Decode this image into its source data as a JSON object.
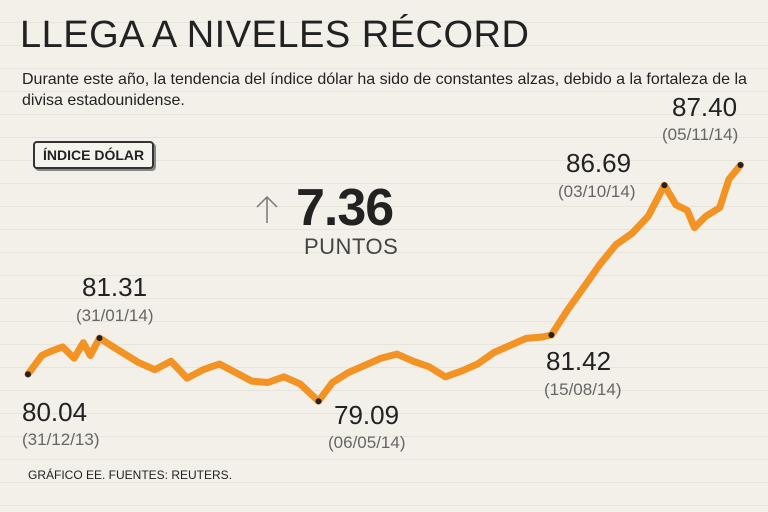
{
  "title": "LLEGA A NIVELES RÉCORD",
  "subtitle": "Durante este año, la tendencia del índice dólar ha sido de constantes alzas, debido a la fortaleza de la divisa estadounidense.",
  "legend_label": "ÍNDICE DÓLAR",
  "change": {
    "value": "7.36",
    "unit": "PUNTOS",
    "icon": "up-arrow-icon"
  },
  "source": "GRÁFICO EE. FUENTES: REUTERS.",
  "colors": {
    "line": "#f39324",
    "background": "#f3f0ea",
    "marker": "#222222"
  },
  "annotations": [
    {
      "id": "start",
      "value": "80.04",
      "date": "(31/12/13)"
    },
    {
      "id": "jan",
      "value": "81.31",
      "date": "(31/01/14)"
    },
    {
      "id": "may",
      "value": "79.09",
      "date": "(06/05/14)"
    },
    {
      "id": "aug",
      "value": "81.42",
      "date": "(15/08/14)"
    },
    {
      "id": "oct",
      "value": "86.69",
      "date": "(03/10/14)"
    },
    {
      "id": "nov",
      "value": "87.40",
      "date": "(05/11/14)"
    }
  ],
  "chart_data": {
    "type": "line",
    "title": "LLEGA A NIVELES RÉCORD",
    "xlabel": "",
    "ylabel": "",
    "ylim": [
      78.5,
      88
    ],
    "xlim": [
      "2013-12-31",
      "2014-11-10"
    ],
    "grid": false,
    "series": [
      {
        "name": "ÍNDICE DÓLAR",
        "x": [
          "2013-12-31",
          "2014-01-06",
          "2014-01-10",
          "2014-01-15",
          "2014-01-20",
          "2014-01-24",
          "2014-01-27",
          "2014-01-31",
          "2014-02-05",
          "2014-02-10",
          "2014-02-17",
          "2014-02-24",
          "2014-03-03",
          "2014-03-10",
          "2014-03-17",
          "2014-03-24",
          "2014-03-31",
          "2014-04-07",
          "2014-04-14",
          "2014-04-21",
          "2014-04-28",
          "2014-05-06",
          "2014-05-12",
          "2014-05-19",
          "2014-05-26",
          "2014-06-02",
          "2014-06-09",
          "2014-06-16",
          "2014-06-23",
          "2014-06-30",
          "2014-07-07",
          "2014-07-14",
          "2014-07-21",
          "2014-07-28",
          "2014-08-04",
          "2014-08-11",
          "2014-08-15",
          "2014-08-22",
          "2014-08-29",
          "2014-09-05",
          "2014-09-12",
          "2014-09-19",
          "2014-09-26",
          "2014-10-03",
          "2014-10-08",
          "2014-10-13",
          "2014-10-16",
          "2014-10-21",
          "2014-10-27",
          "2014-10-31",
          "2014-11-05"
        ],
        "y": [
          80.04,
          80.7,
          80.85,
          81.0,
          80.6,
          81.15,
          80.7,
          81.31,
          81.05,
          80.8,
          80.45,
          80.2,
          80.5,
          79.9,
          80.2,
          80.4,
          80.1,
          79.8,
          79.75,
          79.95,
          79.7,
          79.09,
          79.75,
          80.1,
          80.35,
          80.6,
          80.75,
          80.5,
          80.3,
          79.95,
          80.15,
          80.4,
          80.8,
          81.05,
          81.3,
          81.35,
          81.42,
          82.3,
          83.1,
          83.9,
          84.6,
          85.0,
          85.6,
          86.69,
          86.0,
          85.8,
          85.2,
          85.6,
          85.9,
          86.9,
          87.4
        ]
      }
    ]
  }
}
